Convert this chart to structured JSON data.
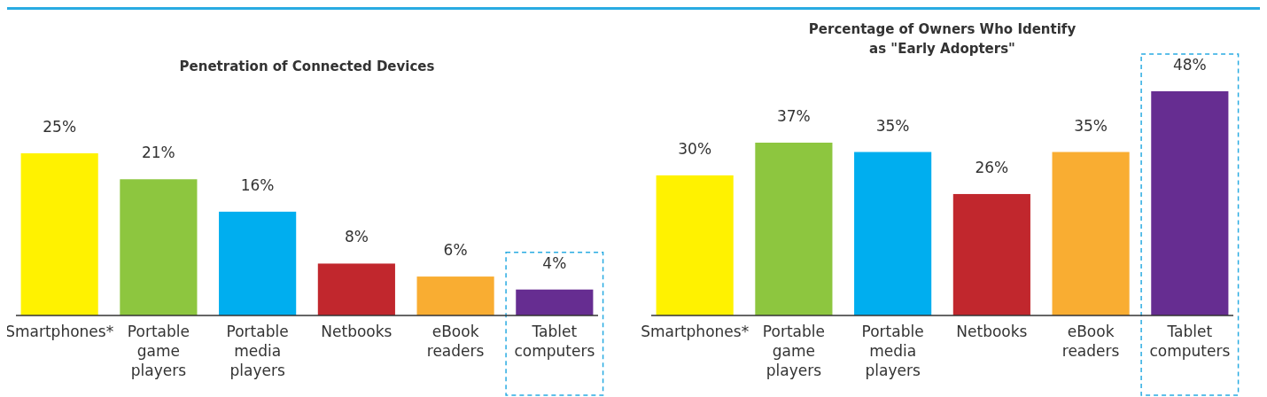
{
  "chart_data": [
    {
      "type": "bar",
      "title": "Penetration of Connected Devices",
      "categories": [
        "Smartphones*",
        "Portable game players",
        "Portable media players",
        "Netbooks",
        "eBook readers",
        "Tablet computers"
      ],
      "values": [
        25,
        21,
        16,
        8,
        6,
        4
      ],
      "colors": [
        "#fff200",
        "#8dc63f",
        "#00aeef",
        "#c1272d",
        "#f9ad32",
        "#662d91"
      ],
      "data_labels": true,
      "value_labels": [
        "25%",
        "21%",
        "16%",
        "8%",
        "6%",
        "4%"
      ]
    },
    {
      "type": "bar",
      "title": "Percentage of Owners Who Identify as \"Early Adopters\"",
      "categories": [
        "Smartphones*",
        "Portable game players",
        "Portable media players",
        "Netbooks",
        "eBook readers",
        "Tablet computers"
      ],
      "values": [
        30,
        37,
        35,
        26,
        35,
        48
      ],
      "colors": [
        "#fff200",
        "#8dc63f",
        "#00aeef",
        "#c1272d",
        "#f9ad32",
        "#662d91"
      ],
      "data_labels": true,
      "value_labels": [
        "30%",
        "37%",
        "35%",
        "26%",
        "35%",
        "48%"
      ]
    }
  ]
}
